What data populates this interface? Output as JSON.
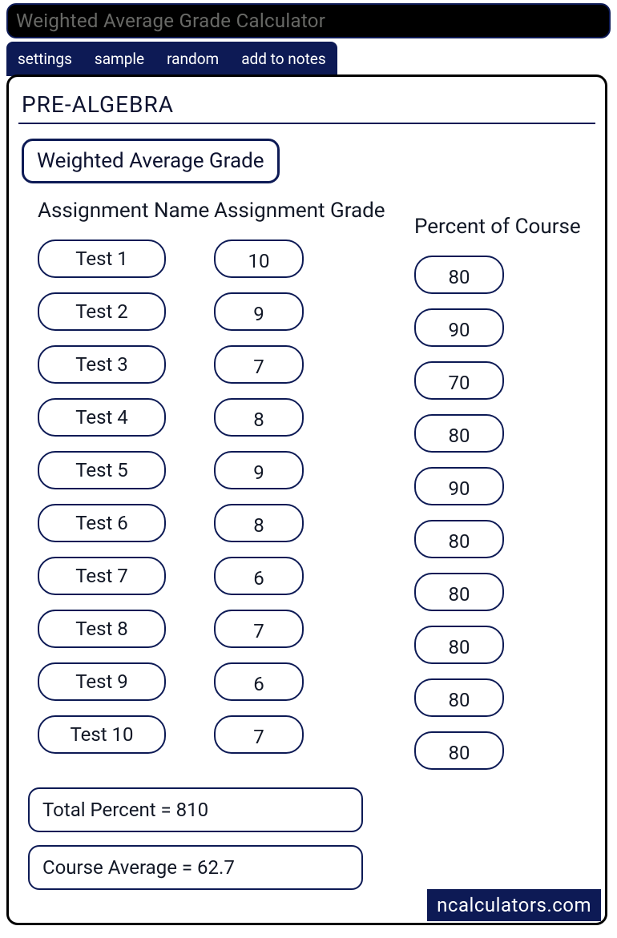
{
  "colors": {
    "navy": "#0d1a55",
    "text": "#121826",
    "title_bg": "#000000",
    "title_fg": "#686966",
    "white": "#ffffff"
  },
  "title": "Weighted Average Grade Calculator",
  "tabs": {
    "settings": "settings",
    "sample": "sample",
    "random": "random",
    "add_to_notes": "add to notes"
  },
  "section": "PRE-ALGEBRA",
  "subsection": "Weighted Average Grade",
  "headers": {
    "name": "Assignment Name",
    "grade": "Assignment Grade",
    "percent": "Percent of Course"
  },
  "rows": [
    {
      "name": "Test 1",
      "grade": "10",
      "percent": "80"
    },
    {
      "name": "Test 2",
      "grade": "9",
      "percent": "90"
    },
    {
      "name": "Test 3",
      "grade": "7",
      "percent": "70"
    },
    {
      "name": "Test 4",
      "grade": "8",
      "percent": "80"
    },
    {
      "name": "Test 5",
      "grade": "9",
      "percent": "90"
    },
    {
      "name": "Test 6",
      "grade": "8",
      "percent": "80"
    },
    {
      "name": "Test 7",
      "grade": "6",
      "percent": "80"
    },
    {
      "name": "Test 8",
      "grade": "7",
      "percent": "80"
    },
    {
      "name": "Test 9",
      "grade": "6",
      "percent": "80"
    },
    {
      "name": "Test 10",
      "grade": "7",
      "percent": "80"
    }
  ],
  "summary": {
    "total_percent": "Total Percent = 810",
    "course_average": "Course Average = 62.7"
  },
  "brand": "ncalculators.com"
}
